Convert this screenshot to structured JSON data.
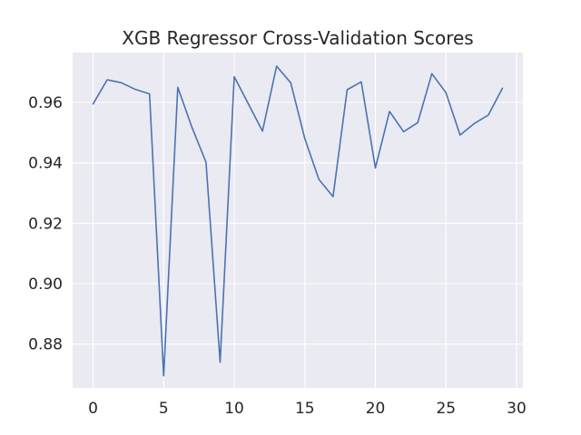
{
  "chart_data": {
    "type": "line",
    "title": "XGB Regressor Cross-Validation Scores",
    "xlabel": "",
    "ylabel": "",
    "xlim": [
      -1.45,
      30.45
    ],
    "ylim": [
      0.8655,
      0.9765
    ],
    "xticks": [
      0,
      5,
      10,
      15,
      20,
      25,
      30
    ],
    "xtick_labels": [
      "0",
      "5",
      "10",
      "15",
      "20",
      "25",
      "30"
    ],
    "yticks": [
      0.88,
      0.9,
      0.92,
      0.94,
      0.96
    ],
    "ytick_labels": [
      "0.88",
      "0.90",
      "0.92",
      "0.94",
      "0.96"
    ],
    "grid": true,
    "legend": "none",
    "series": [
      {
        "color": "#4c72b0",
        "x": [
          0,
          1,
          2,
          3,
          4,
          5,
          6,
          7,
          8,
          9,
          10,
          11,
          12,
          13,
          14,
          15,
          16,
          17,
          18,
          19,
          20,
          21,
          22,
          23,
          24,
          25,
          26,
          27,
          28,
          29
        ],
        "y": [
          0.9595,
          0.9675,
          0.9665,
          0.9643,
          0.9628,
          0.8695,
          0.965,
          0.9518,
          0.9402,
          0.874,
          0.9685,
          0.9595,
          0.9505,
          0.972,
          0.9665,
          0.948,
          0.9345,
          0.9288,
          0.9642,
          0.9668,
          0.9383,
          0.957,
          0.9503,
          0.9533,
          0.9695,
          0.9632,
          0.9492,
          0.953,
          0.9558,
          0.9647
        ]
      }
    ]
  },
  "style": {
    "axes_background": "#eaeaf2",
    "grid_color": "#ffffff",
    "text_color": "#262626"
  }
}
